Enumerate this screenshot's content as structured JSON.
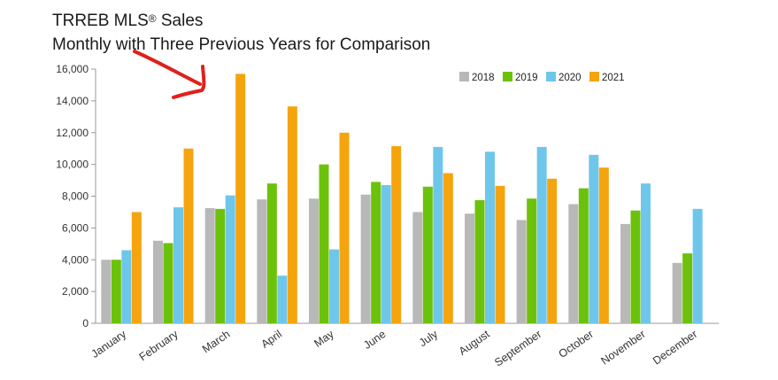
{
  "header": {
    "title": "TRREB MLS",
    "title_superscript": "®",
    "title_suffix": " Sales",
    "subtitle": "Monthly with Three Previous Years for Comparison"
  },
  "annotation": {
    "type": "red hand-drawn arrow",
    "color": "#e0201b"
  },
  "chart_data": {
    "type": "bar",
    "title": "TRREB MLS® Sales",
    "subtitle": "Monthly with Three Previous Years for Comparison",
    "xlabel": "",
    "ylabel": "",
    "ylim": [
      0,
      16000
    ],
    "yticks": [
      0,
      2000,
      4000,
      6000,
      8000,
      10000,
      12000,
      14000,
      16000
    ],
    "ytick_labels": [
      "0",
      "2,000",
      "4,000",
      "6,000",
      "8,000",
      "10,000",
      "12,000",
      "14,000",
      "16,000"
    ],
    "grid": false,
    "legend_position": "top-right",
    "categories": [
      "January",
      "February",
      "March",
      "April",
      "May",
      "June",
      "July",
      "August",
      "September",
      "October",
      "November",
      "December"
    ],
    "series": [
      {
        "name": "2018",
        "color": "#b8b8b8",
        "values": [
          4000,
          5200,
          7250,
          7800,
          7850,
          8100,
          7000,
          6900,
          6500,
          7500,
          6250,
          3800
        ]
      },
      {
        "name": "2019",
        "color": "#6cc20a",
        "values": [
          4000,
          5050,
          7200,
          8800,
          10000,
          8900,
          8600,
          7750,
          7850,
          8500,
          7100,
          4400
        ]
      },
      {
        "name": "2020",
        "color": "#6ec6ea",
        "values": [
          4600,
          7300,
          8050,
          3000,
          4650,
          8700,
          11100,
          10800,
          11100,
          10600,
          8800,
          7200
        ]
      },
      {
        "name": "2021",
        "color": "#f5a40e",
        "values": [
          7000,
          11000,
          15700,
          13650,
          12000,
          11150,
          9450,
          8650,
          9100,
          9800,
          null,
          null
        ]
      }
    ]
  }
}
